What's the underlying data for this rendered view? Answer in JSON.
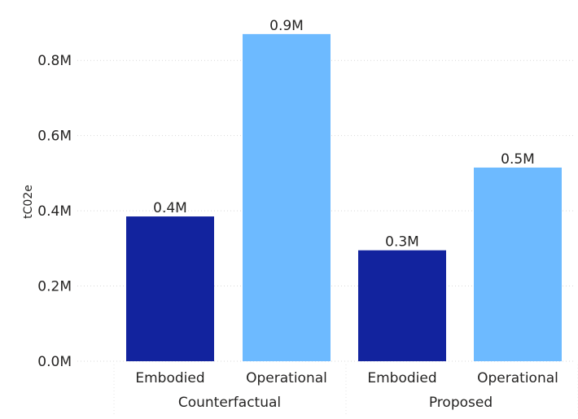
{
  "chart_data": {
    "type": "bar",
    "ylabel": "tC02e",
    "ylim": [
      0,
      0.9
    ],
    "yticks": [
      0.0,
      0.2,
      0.4,
      0.6,
      0.8
    ],
    "ytick_labels": [
      "0.0M",
      "0.2M",
      "0.4M",
      "0.6M",
      "0.8M"
    ],
    "grid": true,
    "groups": [
      {
        "name": "Counterfactual",
        "categories": [
          "Embodied",
          "Operational"
        ],
        "values": [
          0.385,
          0.87
        ],
        "labels": [
          "0.4M",
          "0.9M"
        ]
      },
      {
        "name": "Proposed",
        "categories": [
          "Embodied",
          "Operational"
        ],
        "values": [
          0.295,
          0.515
        ],
        "labels": [
          "0.3M",
          "0.5M"
        ]
      }
    ],
    "colors": {
      "Embodied": "#12239e",
      "Operational": "#6dbaff"
    }
  }
}
